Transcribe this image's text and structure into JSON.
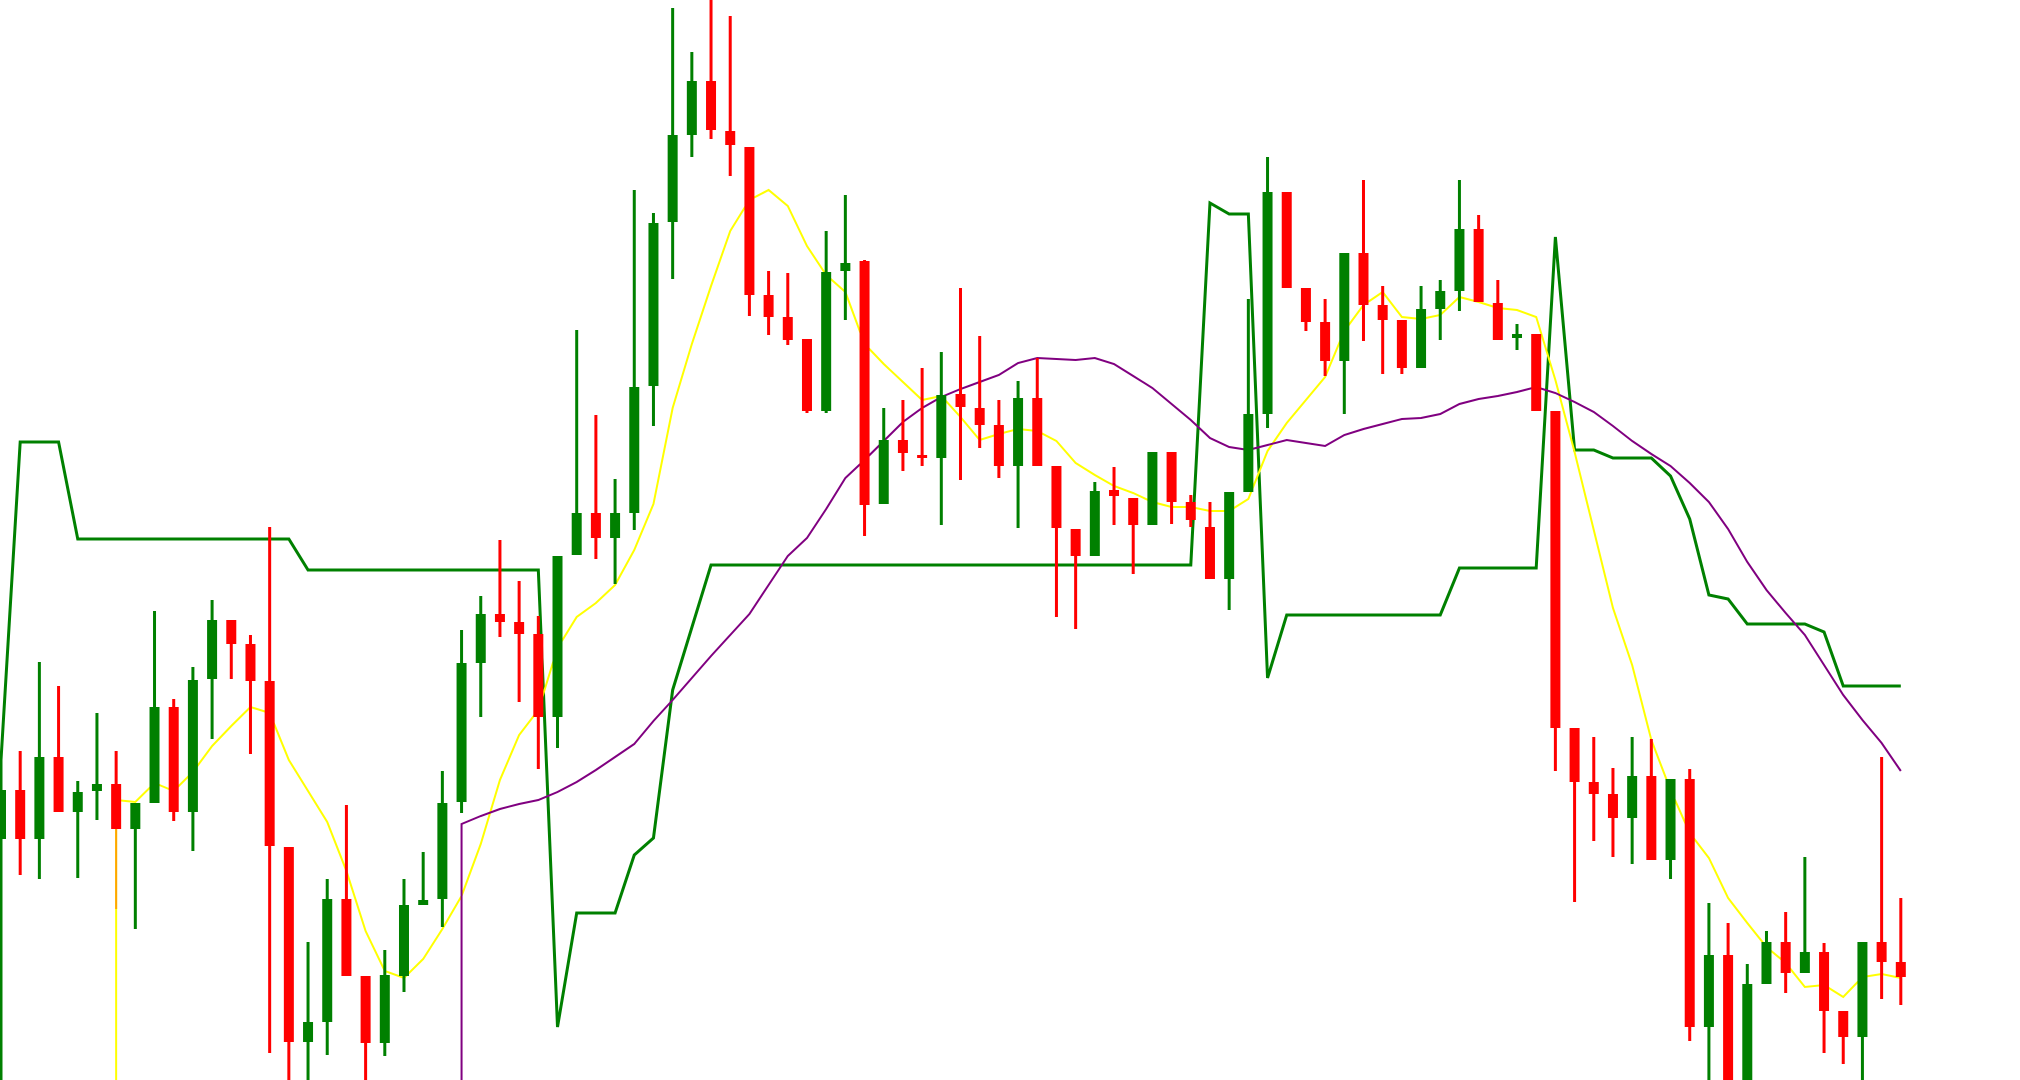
{
  "chart_data": {
    "type": "candlestick",
    "title": "",
    "xlabel": "",
    "ylabel": "",
    "ylim": [
      12,
      120
    ],
    "grid": false,
    "legend": "none",
    "colors": {
      "up": "#008000",
      "down": "#ff0000",
      "ma_fast": "#ffff00",
      "ma_slow": "#800080",
      "step": "#008000",
      "marker": "#ffa500",
      "background": "#ffffff"
    },
    "candles_ohlc": [
      [
        36.1,
        44.3,
        33.0,
        41.0
      ],
      [
        41.0,
        44.9,
        32.5,
        36.1
      ],
      [
        36.1,
        53.8,
        32.1,
        44.3
      ],
      [
        44.3,
        51.4,
        38.8,
        38.8
      ],
      [
        38.8,
        41.9,
        32.2,
        40.8
      ],
      [
        40.9,
        48.7,
        38.0,
        41.6
      ],
      [
        41.6,
        44.9,
        37.1,
        37.1
      ],
      [
        37.1,
        39.7,
        27.1,
        39.7
      ],
      [
        39.7,
        58.9,
        39.7,
        49.3
      ],
      [
        49.3,
        50.1,
        37.9,
        38.8
      ],
      [
        38.8,
        53.3,
        34.9,
        52.0
      ],
      [
        52.1,
        60.0,
        46.1,
        58.0
      ],
      [
        58.0,
        58.0,
        52.1,
        55.6
      ],
      [
        55.6,
        56.5,
        44.6,
        51.9
      ],
      [
        51.9,
        67.3,
        14.7,
        35.4
      ],
      [
        35.3,
        35.3,
        12.0,
        15.8
      ],
      [
        15.8,
        25.8,
        12.0,
        17.8
      ],
      [
        17.8,
        32.1,
        14.5,
        30.1
      ],
      [
        30.1,
        39.5,
        22.4,
        22.4
      ],
      [
        22.4,
        22.4,
        12.0,
        15.7
      ],
      [
        15.7,
        25.0,
        14.4,
        22.5
      ],
      [
        22.4,
        32.1,
        20.8,
        29.5
      ],
      [
        29.5,
        34.8,
        29.5,
        30.0
      ],
      [
        30.1,
        42.9,
        27.3,
        39.7
      ],
      [
        39.8,
        57.0,
        38.7,
        53.7
      ],
      [
        53.7,
        60.4,
        48.3,
        58.6
      ],
      [
        58.6,
        66.0,
        56.3,
        57.8
      ],
      [
        57.8,
        61.9,
        49.8,
        56.6
      ],
      [
        56.6,
        58.4,
        43.1,
        48.3
      ],
      [
        48.3,
        64.4,
        45.2,
        64.4
      ],
      [
        64.5,
        87.0,
        64.5,
        68.7
      ],
      [
        68.7,
        78.5,
        64.1,
        66.2
      ],
      [
        66.2,
        72.1,
        61.6,
        68.7
      ],
      [
        68.7,
        101.0,
        67.0,
        81.3
      ],
      [
        81.4,
        98.7,
        77.4,
        97.7
      ],
      [
        97.8,
        119.2,
        92.1,
        106.5
      ],
      [
        106.5,
        114.8,
        104.3,
        111.9
      ],
      [
        111.9,
        120.0,
        106.1,
        107.0
      ],
      [
        106.9,
        118.4,
        102.4,
        105.5
      ],
      [
        105.3,
        105.3,
        88.4,
        90.5
      ],
      [
        90.5,
        92.9,
        86.5,
        88.3
      ],
      [
        88.3,
        92.7,
        85.5,
        86.0
      ],
      [
        86.1,
        86.1,
        78.7,
        78.9
      ],
      [
        78.9,
        96.9,
        78.7,
        92.8
      ],
      [
        92.9,
        100.5,
        88.0,
        93.7
      ],
      [
        93.9,
        94.0,
        66.4,
        69.5
      ],
      [
        69.6,
        79.2,
        69.6,
        76.0
      ],
      [
        76.0,
        80.0,
        72.9,
        74.7
      ],
      [
        74.5,
        83.2,
        73.4,
        74.2
      ],
      [
        74.2,
        84.8,
        67.5,
        80.5
      ],
      [
        80.6,
        91.2,
        72.0,
        79.3
      ],
      [
        79.2,
        86.4,
        75.2,
        77.5
      ],
      [
        77.5,
        80.0,
        72.2,
        73.4
      ],
      [
        73.4,
        81.9,
        67.2,
        80.2
      ],
      [
        80.2,
        84.2,
        73.4,
        73.4
      ],
      [
        73.4,
        73.4,
        58.3,
        67.2
      ],
      [
        67.1,
        67.1,
        57.1,
        64.4
      ],
      [
        64.4,
        71.8,
        64.4,
        70.9
      ],
      [
        71.0,
        73.3,
        67.5,
        70.4
      ],
      [
        70.2,
        70.2,
        62.6,
        67.5
      ],
      [
        67.5,
        74.8,
        67.5,
        74.8
      ],
      [
        74.8,
        74.8,
        67.6,
        69.8
      ],
      [
        69.8,
        70.5,
        67.3,
        68.0
      ],
      [
        67.3,
        69.8,
        62.1,
        62.1
      ],
      [
        62.1,
        70.8,
        59.0,
        70.8
      ],
      [
        70.8,
        90.1,
        70.8,
        78.6
      ],
      [
        78.6,
        104.3,
        77.2,
        100.8
      ],
      [
        100.8,
        100.8,
        91.2,
        91.2
      ],
      [
        91.2,
        91.2,
        86.9,
        87.8
      ],
      [
        87.8,
        90.1,
        82.4,
        83.9
      ],
      [
        83.9,
        94.7,
        78.6,
        94.7
      ],
      [
        94.7,
        102.0,
        85.9,
        89.5
      ],
      [
        89.5,
        91.4,
        82.6,
        88.0
      ],
      [
        88.0,
        88.0,
        82.6,
        83.2
      ],
      [
        83.2,
        91.4,
        83.2,
        89.1
      ],
      [
        89.1,
        92.0,
        86.0,
        90.9
      ],
      [
        90.9,
        102.0,
        88.9,
        97.1
      ],
      [
        97.1,
        98.5,
        89.8,
        89.8
      ],
      [
        89.7,
        92.0,
        86.0,
        86.0
      ],
      [
        86.2,
        87.6,
        85.0,
        86.6
      ],
      [
        86.6,
        86.6,
        78.9,
        78.9
      ],
      [
        78.9,
        78.9,
        42.9,
        47.2
      ],
      [
        47.2,
        47.2,
        29.8,
        41.8
      ],
      [
        41.8,
        46.3,
        35.9,
        40.6
      ],
      [
        40.6,
        43.2,
        34.3,
        38.2
      ],
      [
        38.2,
        46.3,
        33.6,
        42.4
      ],
      [
        42.4,
        46.1,
        34.0,
        34.0
      ],
      [
        34.0,
        42.1,
        32.1,
        42.1
      ],
      [
        42.1,
        43.1,
        15.9,
        17.3
      ],
      [
        17.3,
        29.7,
        12.0,
        24.5
      ],
      [
        24.5,
        27.7,
        12.0,
        12.0
      ],
      [
        12.0,
        23.6,
        12.0,
        21.6
      ],
      [
        21.6,
        26.9,
        21.6,
        25.8
      ],
      [
        25.8,
        28.8,
        20.7,
        22.7
      ],
      [
        22.7,
        34.3,
        22.7,
        24.8
      ],
      [
        24.8,
        25.7,
        14.7,
        18.9
      ],
      [
        18.9,
        18.9,
        13.6,
        16.3
      ],
      [
        16.3,
        25.8,
        12.0,
        25.8
      ],
      [
        25.8,
        44.3,
        20.1,
        23.8
      ],
      [
        23.8,
        30.2,
        19.5,
        22.3
      ]
    ],
    "lines": [
      {
        "key": "ma_fast",
        "start_index": 6,
        "lead_in": 12.0,
        "values": [
          40.0,
          39.8,
          41.7,
          40.9,
          42.8,
          45.4,
          47.4,
          49.3,
          48.7,
          44.0,
          40.9,
          37.8,
          32.9,
          26.9,
          22.9,
          22.2,
          24.1,
          27.1,
          30.4,
          35.6,
          42.0,
          46.5,
          49.0,
          55.2,
          58.3,
          59.7,
          61.5,
          65.0,
          69.6,
          79.2,
          85.6,
          91.4,
          96.9,
          100.0,
          101.0,
          99.4,
          95.4,
          92.5,
          90.8,
          85.6,
          83.6,
          81.8,
          80.0,
          80.4,
          78.3,
          76.0,
          76.6,
          77.1,
          76.9,
          75.9,
          73.7,
          72.5,
          71.4,
          70.7,
          69.8,
          69.3,
          69.3,
          68.9,
          68.9,
          70.1,
          74.9,
          77.7,
          80.0,
          82.3,
          86.9,
          89.5,
          90.8,
          88.3,
          88.1,
          88.5,
          90.3,
          89.8,
          89.2,
          89.0,
          88.3,
          82.0,
          74.8,
          67.0,
          59.2,
          53.5,
          46.0,
          41.0,
          36.7,
          34.2,
          30.2,
          27.7,
          25.3,
          23.7,
          21.3,
          21.5,
          20.3,
          22.3,
          22.6,
          22.2
        ]
      },
      {
        "key": "ma_slow",
        "start_index": 24,
        "lead_in": 12.0,
        "values": [
          37.6,
          38.4,
          39.1,
          39.6,
          40.0,
          40.8,
          41.8,
          43.0,
          44.3,
          45.6,
          47.9,
          50.0,
          52.2,
          54.4,
          56.5,
          58.6,
          61.5,
          64.4,
          66.2,
          69.1,
          72.2,
          74.0,
          75.9,
          77.8,
          79.2,
          80.3,
          81.1,
          81.8,
          82.5,
          83.7,
          84.2,
          84.1,
          84.0,
          84.2,
          83.6,
          82.4,
          81.2,
          79.6,
          78.0,
          76.2,
          75.3,
          75.0,
          75.5,
          76.0,
          75.7,
          75.4,
          76.5,
          77.1,
          77.6,
          78.1,
          78.2,
          78.6,
          79.6,
          80.1,
          80.4,
          80.8,
          81.3,
          80.7,
          79.8,
          78.8,
          77.4,
          75.9,
          74.6,
          73.4,
          71.7,
          69.8,
          67.1,
          63.8,
          61.0,
          58.7,
          56.5,
          53.5,
          50.5,
          48.0,
          45.7,
          42.9
        ]
      }
    ],
    "step_line": [
      [
        0,
        12.0
      ],
      [
        0,
        44.0
      ],
      [
        1,
        75.8
      ],
      [
        3,
        75.8
      ],
      [
        4,
        66.1
      ],
      [
        15,
        66.1
      ],
      [
        16,
        63.0
      ],
      [
        28,
        63.0
      ],
      [
        29,
        17.3
      ],
      [
        30,
        28.7
      ],
      [
        32,
        28.7
      ],
      [
        33,
        34.5
      ],
      [
        34,
        36.2
      ],
      [
        35,
        51.0
      ],
      [
        37,
        63.5
      ],
      [
        62,
        63.5
      ],
      [
        63,
        99.7
      ],
      [
        64,
        98.6
      ],
      [
        65,
        98.6
      ],
      [
        66,
        52.2
      ],
      [
        67,
        58.5
      ],
      [
        75,
        58.5
      ],
      [
        76,
        63.2
      ],
      [
        80,
        63.2
      ],
      [
        81,
        96.3
      ],
      [
        82,
        75.0
      ],
      [
        83,
        75.0
      ],
      [
        84,
        74.2
      ],
      [
        86,
        74.2
      ],
      [
        87,
        72.4
      ],
      [
        88,
        68.1
      ],
      [
        89,
        60.5
      ],
      [
        90,
        60.1
      ],
      [
        91,
        57.6
      ],
      [
        94,
        57.6
      ],
      [
        95,
        56.8
      ],
      [
        96,
        51.4
      ],
      [
        99,
        51.4
      ]
    ],
    "marker_segment": [
      [
        6,
        40.0
      ],
      [
        6,
        29.1
      ]
    ]
  }
}
